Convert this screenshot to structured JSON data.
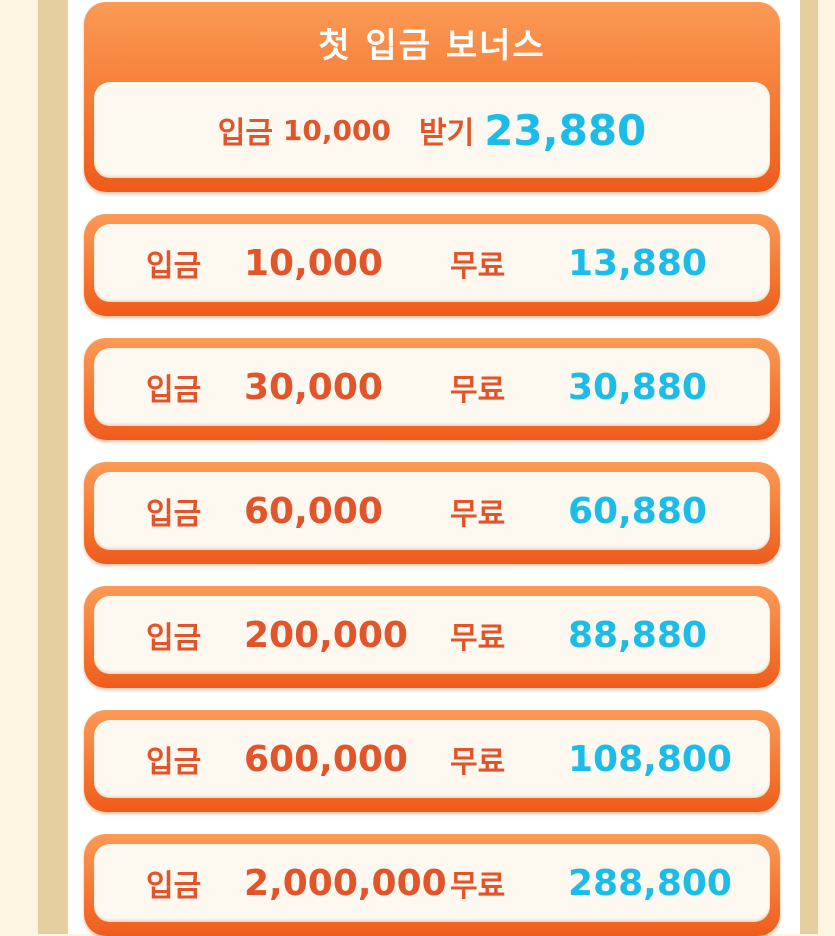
{
  "header": {
    "title": "첫 입금 보너스",
    "deposit_label": "입금",
    "deposit_amount": "10,000",
    "receive_label": "받기",
    "receive_amount": "23,880"
  },
  "rows": [
    {
      "deposit_label": "입금",
      "deposit": "10,000",
      "free_label": "무료",
      "free": "13,880"
    },
    {
      "deposit_label": "입금",
      "deposit": "30,000",
      "free_label": "무료",
      "free": "30,880"
    },
    {
      "deposit_label": "입금",
      "deposit": "60,000",
      "free_label": "무료",
      "free": "60,880"
    },
    {
      "deposit_label": "입금",
      "deposit": "200,000",
      "free_label": "무료",
      "free": "88,880"
    },
    {
      "deposit_label": "입금",
      "deposit": "600,000",
      "free_label": "무료",
      "free": "108,800"
    },
    {
      "deposit_label": "입금",
      "deposit": "2,000,000",
      "free_label": "무료",
      "free": "288,800"
    }
  ],
  "colors": {
    "orange": "#f47a33",
    "text_orange": "#e2542a",
    "blue": "#1bbde8",
    "tan": "#e6cf9f"
  }
}
